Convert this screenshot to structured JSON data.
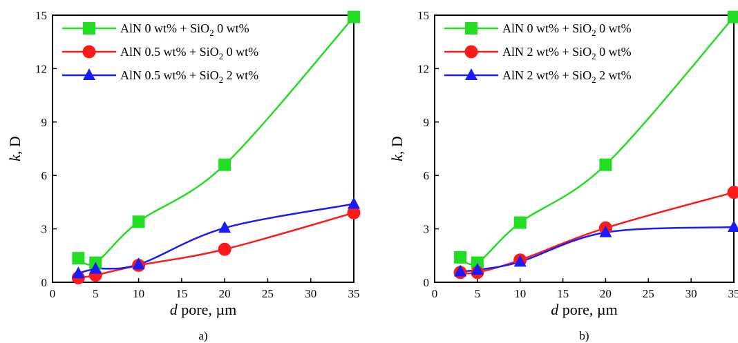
{
  "figure": {
    "panels": [
      "a",
      "b"
    ]
  },
  "chart_data": [
    {
      "type": "line",
      "panel_label": "a)",
      "xlabel_italic": "d",
      "xlabel_rest": " pore, µm",
      "ylabel_italic": "k",
      "ylabel_rest": ", D",
      "xlim": [
        0,
        35
      ],
      "ylim": [
        0,
        15
      ],
      "xticks": [
        0,
        5,
        10,
        15,
        20,
        25,
        30,
        35
      ],
      "yticks": [
        0,
        3,
        6,
        9,
        12,
        15
      ],
      "grid": false,
      "legend_position": "top-left",
      "x": [
        3,
        5,
        10,
        20,
        35
      ],
      "series": [
        {
          "name_parts": [
            "AlN 0 wt% + SiO",
            "2",
            " 0 wt%"
          ],
          "color": "#22dd22",
          "marker": "square",
          "values": [
            1.35,
            1.1,
            3.4,
            6.6,
            14.9
          ]
        },
        {
          "name_parts": [
            "AlN 0.5 wt% + SiO",
            "2",
            " 0 wt%"
          ],
          "color": "#ff1a1a",
          "marker": "circle",
          "values": [
            0.25,
            0.4,
            0.95,
            1.85,
            3.9
          ]
        },
        {
          "name_parts": [
            "AlN 0.5 wt% + SiO",
            "2",
            " 2 wt%"
          ],
          "color": "#1a1aff",
          "marker": "triangle",
          "values": [
            0.5,
            0.75,
            1.0,
            3.05,
            4.4
          ]
        }
      ]
    },
    {
      "type": "line",
      "panel_label": "b)",
      "xlabel_italic": "d",
      "xlabel_rest": " pore, µm",
      "ylabel_italic": "k",
      "ylabel_rest": ", D",
      "xlim": [
        0,
        35
      ],
      "ylim": [
        0,
        15
      ],
      "xticks": [
        0,
        5,
        10,
        15,
        20,
        25,
        30,
        35
      ],
      "yticks": [
        0,
        3,
        6,
        9,
        12,
        15
      ],
      "grid": false,
      "legend_position": "top-left",
      "x": [
        3,
        5,
        10,
        20,
        35
      ],
      "series": [
        {
          "name_parts": [
            "AlN 0 wt% + SiO",
            "2",
            " 0 wt%"
          ],
          "color": "#22dd22",
          "marker": "square",
          "values": [
            1.4,
            1.1,
            3.35,
            6.6,
            14.9
          ]
        },
        {
          "name_parts": [
            "AlN 2 wt% + SiO",
            "2",
            " 0 wt%"
          ],
          "color": "#ff1a1a",
          "marker": "circle",
          "values": [
            0.55,
            0.55,
            1.25,
            3.05,
            5.05
          ]
        },
        {
          "name_parts": [
            "AlN 2 wt% + SiO",
            "2",
            " 2 wt%"
          ],
          "color": "#1a1aff",
          "marker": "triangle",
          "values": [
            0.6,
            0.7,
            1.15,
            2.8,
            3.1
          ]
        }
      ]
    }
  ]
}
